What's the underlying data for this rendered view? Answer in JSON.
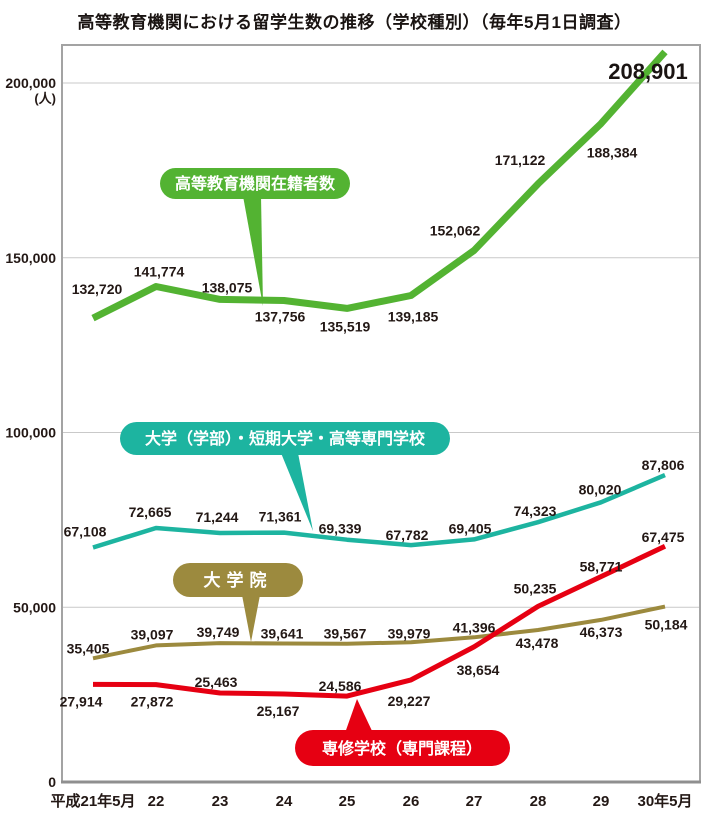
{
  "title": "高等教育機関における留学生数の推移（学校種別）（毎年5月1日調査）",
  "y_axis_unit": "(人)",
  "chart_data": {
    "type": "line",
    "title": "高等教育機関における留学生数の推移（学校種別）（毎年5月1日調査）",
    "xlabel": "",
    "ylabel": "(人)",
    "x": [
      "平成21年5月",
      "22",
      "23",
      "24",
      "25",
      "26",
      "27",
      "28",
      "29",
      "30年5月"
    ],
    "yticks": [
      0,
      50000,
      100000,
      150000,
      200000
    ],
    "ytick_labels": [
      "0",
      "50,000",
      "100,000",
      "150,000",
      "200,000"
    ],
    "ylim": [
      0,
      210000
    ],
    "grid": true,
    "legend_position": "inline-callouts",
    "series": [
      {
        "id": "total",
        "name": "高等教育機関在籍者数",
        "color": "#53b332",
        "values": [
          132720,
          141774,
          138075,
          137756,
          135519,
          139185,
          152062,
          171122,
          188384,
          208901
        ]
      },
      {
        "id": "undergrad",
        "name": "大学（学部）・短期大学・高等専門学校",
        "color": "#1db4a0",
        "values": [
          67108,
          72665,
          71244,
          71361,
          69339,
          67782,
          69405,
          74323,
          80020,
          87806
        ]
      },
      {
        "id": "grad",
        "name": "大学院",
        "color": "#9c8a3e",
        "values": [
          35405,
          39097,
          39749,
          39641,
          39567,
          39979,
          41396,
          43478,
          46373,
          50184
        ]
      },
      {
        "id": "vocational",
        "name": "専修学校（専門課程）",
        "color": "#e60012",
        "values": [
          27914,
          27872,
          25463,
          25167,
          24586,
          29227,
          38654,
          50235,
          58771,
          67475
        ]
      }
    ]
  }
}
